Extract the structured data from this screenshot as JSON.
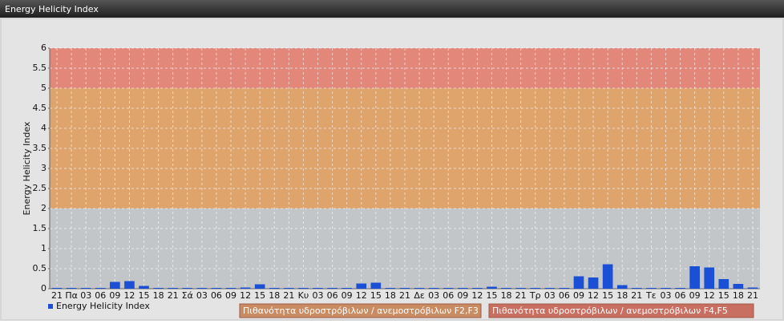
{
  "chart_data": {
    "type": "bar",
    "title": "Energy Helicity Index",
    "y_label": "Energy Helicity Index",
    "categories": [
      "21",
      "Πα",
      "03",
      "06",
      "09",
      "12",
      "15",
      "18",
      "21",
      "Σά",
      "03",
      "06",
      "09",
      "12",
      "15",
      "18",
      "21",
      "Κυ",
      "03",
      "06",
      "09",
      "12",
      "15",
      "18",
      "21",
      "Δε",
      "03",
      "06",
      "09",
      "12",
      "15",
      "18",
      "21",
      "Τρ",
      "03",
      "06",
      "09",
      "12",
      "15",
      "18",
      "21",
      "Τε",
      "03",
      "06",
      "09",
      "12",
      "15",
      "18",
      "21"
    ],
    "series": [
      {
        "name": "Energy Helicity Index",
        "color": "#1a4fd6",
        "values": [
          0.02,
          0.02,
          0.02,
          0.02,
          0.17,
          0.19,
          0.07,
          0.02,
          0.02,
          0.02,
          0.02,
          0.02,
          0.02,
          0.03,
          0.11,
          0.02,
          0.02,
          0.02,
          0.02,
          0.02,
          0.02,
          0.13,
          0.15,
          0.02,
          0.02,
          0.02,
          0.02,
          0.02,
          0.02,
          0.02,
          0.05,
          0.02,
          0.02,
          0.02,
          0.02,
          0.02,
          0.31,
          0.28,
          0.61,
          0.09,
          0.02,
          0.02,
          0.02,
          0.02,
          0.56,
          0.53,
          0.24,
          0.12,
          0.03
        ]
      }
    ],
    "bands": [
      {
        "from": 0,
        "to": 2,
        "color": "#c3c6c9"
      },
      {
        "from": 2,
        "to": 5,
        "color": "#dfa36c",
        "label": "Πιθανότητα υδροστρόβιλων / ανεμοστρόβιλων F2,F3",
        "legend_color": "#c98c62"
      },
      {
        "from": 5,
        "to": 6,
        "color": "#e2877a",
        "label": "Πιθανότητα υδροστρόβιλων / ανεμοστρόβιλων F4,F5",
        "legend_color": "#c96f62"
      }
    ],
    "ylim": [
      0,
      6
    ],
    "yticks": [
      0,
      0.5,
      1,
      1.5,
      2,
      2.5,
      3,
      3.5,
      4,
      4.5,
      5,
      5.5,
      6
    ],
    "grid": true
  }
}
